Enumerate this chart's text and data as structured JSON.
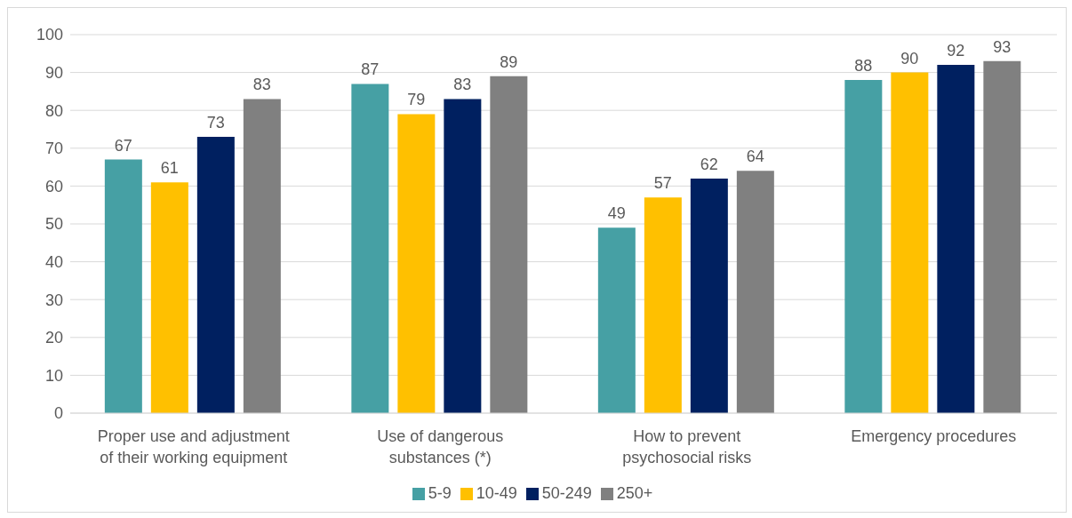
{
  "chart_data": {
    "type": "bar",
    "categories": [
      "Proper use and adjustment of their working equipment",
      "Use of dangerous substances (*)",
      "How to prevent psychosocial risks",
      "Emergency procedures"
    ],
    "series": [
      {
        "name": "5-9",
        "color": "#46a0a4",
        "values": [
          67,
          87,
          49,
          88
        ]
      },
      {
        "name": "10-49",
        "color": "#ffc000",
        "values": [
          61,
          79,
          57,
          90
        ]
      },
      {
        "name": "50-249",
        "color": "#002060",
        "values": [
          73,
          83,
          62,
          92
        ]
      },
      {
        "name": "250+",
        "color": "#808080",
        "values": [
          83,
          89,
          64,
          93
        ]
      }
    ],
    "ylim": [
      0,
      100
    ],
    "yticks": [
      0,
      10,
      20,
      30,
      40,
      50,
      60,
      70,
      80,
      90,
      100
    ],
    "grid": "y",
    "legend": "bottom",
    "data_labels": true
  }
}
